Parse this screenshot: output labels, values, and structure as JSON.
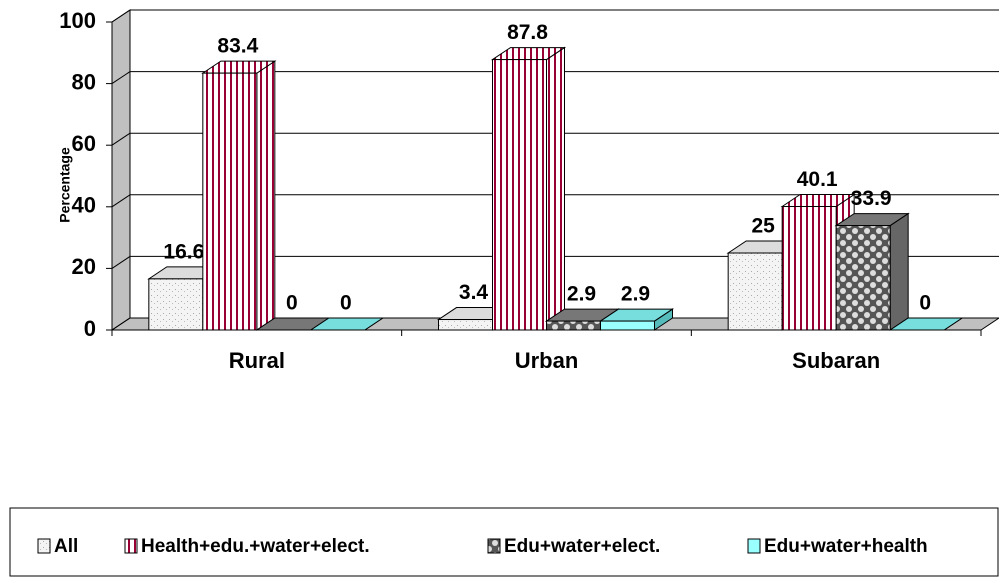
{
  "chart_data": {
    "type": "bar3d",
    "y_label": "Percentage",
    "categories": [
      "Rural",
      "Urban",
      "Subaran"
    ],
    "series": [
      {
        "name": "All",
        "color": "#e6e6e6",
        "values": [
          16.6,
          3.4,
          25
        ]
      },
      {
        "name": "Health+edu.+water+elect.",
        "color": "#990033",
        "values": [
          83.4,
          87.8,
          40.1
        ]
      },
      {
        "name": "Edu+water+elect.",
        "color": "#808080",
        "values": [
          0,
          2.9,
          33.9
        ]
      },
      {
        "name": "Edu+water+health",
        "color": "#99ffff",
        "values": [
          0,
          2.9,
          0
        ]
      }
    ],
    "ylim": [
      0,
      100
    ],
    "yticks": [
      0,
      20,
      40,
      60,
      80,
      100
    ],
    "grid": true,
    "data_labels": true,
    "legend": "bottom"
  }
}
